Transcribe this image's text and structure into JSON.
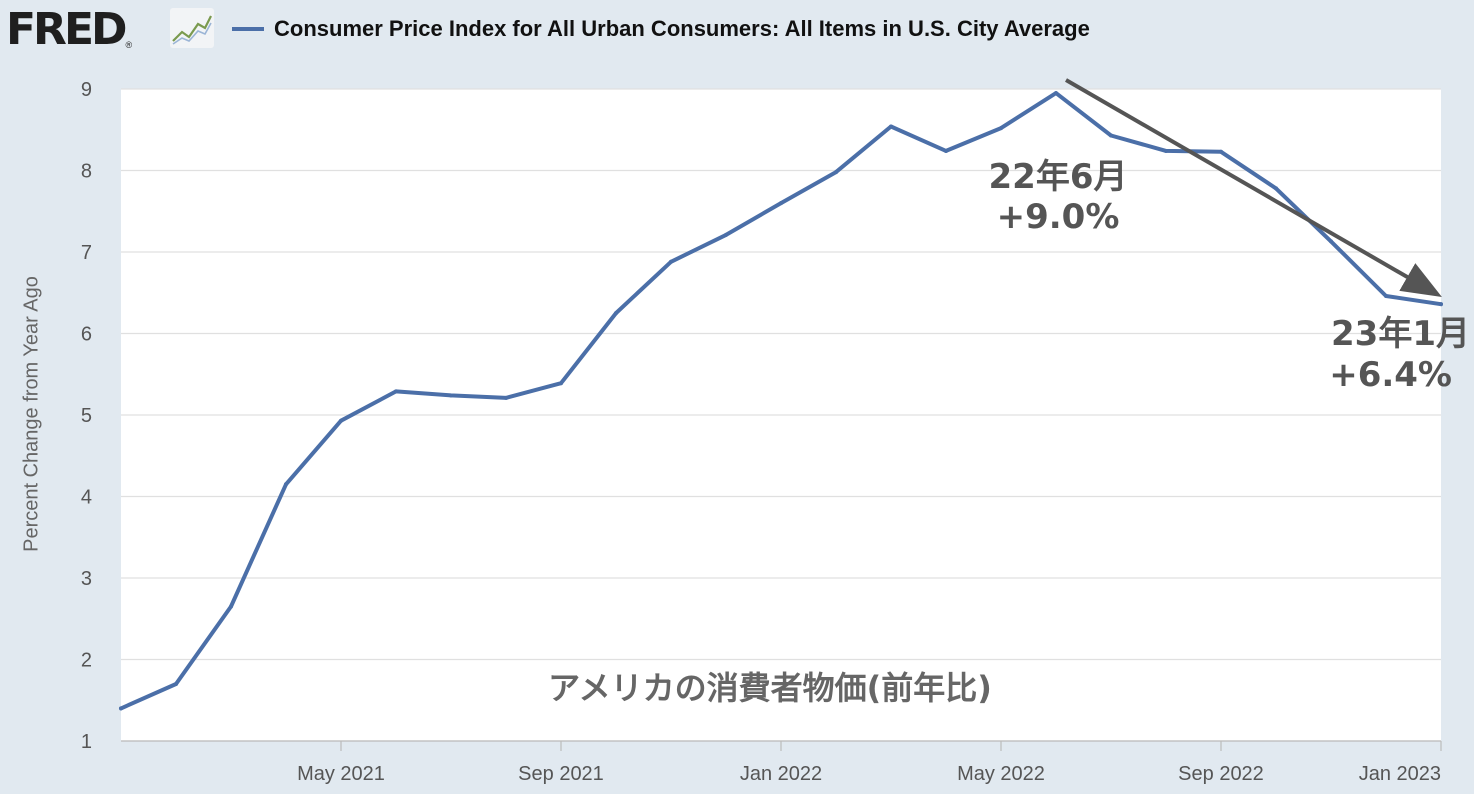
{
  "header": {
    "logo_text": "FRED",
    "logo_reg": "®",
    "title": "Consumer Price Index for All Urban Consumers: All Items in U.S. City Average"
  },
  "colors": {
    "series": "#4b6fa8",
    "background": "#e1e9f0",
    "plot_background": "#ffffff",
    "grid": "#e0e0e0",
    "annotation": "#555555"
  },
  "chart_data": {
    "type": "line",
    "title": "Consumer Price Index for All Urban Consumers: All Items in U.S. City Average",
    "ylabel": "Percent Change from Year Ago",
    "xlabel": "",
    "ylim": [
      1,
      9
    ],
    "yticks": [
      1,
      2,
      3,
      4,
      5,
      6,
      7,
      8,
      9
    ],
    "grid": true,
    "x_ticks": [
      {
        "label": "May 2021",
        "x": "2021-05"
      },
      {
        "label": "Sep 2021",
        "x": "2021-09"
      },
      {
        "label": "Jan 2022",
        "x": "2022-01"
      },
      {
        "label": "May 2022",
        "x": "2022-05"
      },
      {
        "label": "Sep 2022",
        "x": "2022-09"
      },
      {
        "label": "Jan 2023",
        "x": "2023-01"
      }
    ],
    "series": [
      {
        "name": "Consumer Price Index for All Urban Consumers: All Items in U.S. City Average",
        "x": [
          "2021-01",
          "2021-02",
          "2021-03",
          "2021-04",
          "2021-05",
          "2021-06",
          "2021-07",
          "2021-08",
          "2021-09",
          "2021-10",
          "2021-11",
          "2021-12",
          "2022-01",
          "2022-02",
          "2022-03",
          "2022-04",
          "2022-05",
          "2022-06",
          "2022-07",
          "2022-08",
          "2022-09",
          "2022-10",
          "2022-11",
          "2022-12",
          "2023-01"
        ],
        "values": [
          1.4,
          1.7,
          2.65,
          4.15,
          4.93,
          5.29,
          5.24,
          5.21,
          5.39,
          6.25,
          6.88,
          7.21,
          7.6,
          7.98,
          8.54,
          8.24,
          8.52,
          8.95,
          8.43,
          8.24,
          8.23,
          7.78,
          7.13,
          6.46,
          6.36
        ]
      }
    ],
    "annotations": [
      {
        "label": "22年6月",
        "value_label": "+9.0%",
        "x": "2022-06",
        "y": 9.0
      },
      {
        "label": "23年1月",
        "value_label": "+6.4%",
        "x": "2023-01",
        "y": 6.4
      }
    ],
    "trend_arrow": {
      "from": {
        "x": "2022-06",
        "y": 9.0
      },
      "to": {
        "x": "2023-01",
        "y": 6.4
      }
    },
    "caption": "アメリカの消費者物価(前年比)"
  }
}
